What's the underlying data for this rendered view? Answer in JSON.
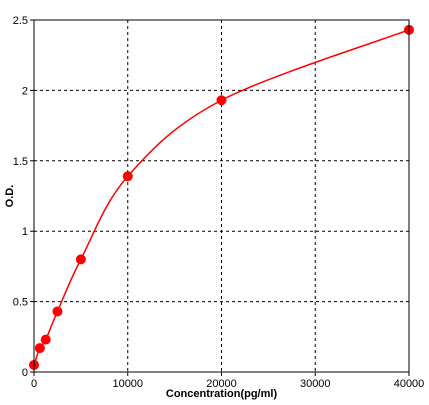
{
  "chart_data": {
    "type": "scatter",
    "title": "",
    "xlabel": "Concentration(pg/ml)",
    "ylabel": "O.D.",
    "xlim": [
      0,
      40000
    ],
    "ylim": [
      0,
      2.5
    ],
    "x_ticks": [
      0,
      10000,
      20000,
      30000,
      40000
    ],
    "y_ticks": [
      0,
      0.5,
      1,
      1.5,
      2,
      2.5
    ],
    "x_tick_labels": [
      "0",
      "10000",
      "20000",
      "30000",
      "40000"
    ],
    "y_tick_labels": [
      "0",
      "0.5",
      "1",
      "1.5",
      "2",
      "2.5"
    ],
    "grid": true,
    "grid_style": "dashed",
    "legend": "none",
    "colors": {
      "series": "#ff0000",
      "grid": "#000000",
      "axis": "#000000",
      "background": "#ffffff"
    },
    "series": [
      {
        "x": [
          0,
          625,
          1250,
          2500,
          5000,
          10000,
          20000,
          40000
        ],
        "y": [
          0.05,
          0.17,
          0.23,
          0.43,
          0.8,
          1.39,
          1.93,
          2.43
        ],
        "marker": "circle",
        "fit_curve": true
      }
    ]
  }
}
